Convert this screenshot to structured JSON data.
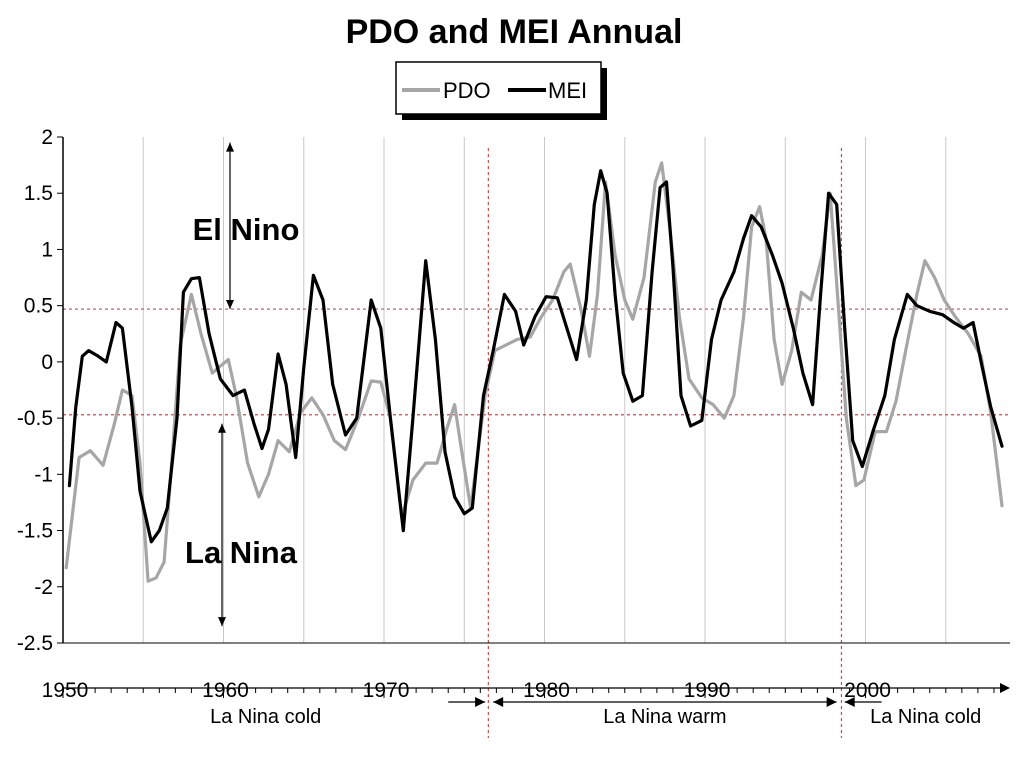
{
  "chart_data": {
    "type": "line",
    "title": "PDO and MEI Annual",
    "xlabel": "",
    "ylabel": "",
    "xlim": [
      1950,
      2009
    ],
    "ylim": [
      -2.5,
      2
    ],
    "x_ticks": [
      "1950",
      "1960",
      "1970",
      "1980",
      "1990",
      "2000"
    ],
    "y_ticks": [
      "2",
      "1.5",
      "1",
      "0.5",
      "0",
      "-0.5",
      "-1",
      "-1.5",
      "-2",
      "-2.5"
    ],
    "grid": "vertical",
    "legend_position": "top-center",
    "thresholds": [
      0.47,
      -0.47
    ],
    "regime_breaks": [
      1976.5,
      1998.5
    ],
    "regions": [
      {
        "label": "La Nina cold",
        "from": 1950,
        "to": 1976.5
      },
      {
        "label": "La Nina warm",
        "from": 1976.5,
        "to": 1998.5
      },
      {
        "label": "La Nina cold",
        "from": 1998.5,
        "to": 2009
      }
    ],
    "annotations": [
      {
        "label": "El Nino",
        "y_from": 0.47,
        "y_to": 1.95
      },
      {
        "label": "La Nina",
        "y_from": -0.55,
        "y_to": -2.35
      }
    ],
    "series": [
      {
        "name": "PDO",
        "color": "#a6a6a6",
        "points": [
          [
            1950.2,
            -1.83
          ],
          [
            1951,
            -0.85
          ],
          [
            1951.7,
            -0.79
          ],
          [
            1952.5,
            -0.92
          ],
          [
            1953.2,
            -0.55
          ],
          [
            1953.7,
            -0.25
          ],
          [
            1954.3,
            -0.3
          ],
          [
            1954.8,
            -0.9
          ],
          [
            1955.3,
            -1.95
          ],
          [
            1955.8,
            -1.92
          ],
          [
            1956.3,
            -1.78
          ],
          [
            1956.8,
            -0.85
          ],
          [
            1957.3,
            0.15
          ],
          [
            1958,
            0.6
          ],
          [
            1958.6,
            0.25
          ],
          [
            1959.3,
            -0.1
          ],
          [
            1959.7,
            -0.05
          ],
          [
            1960.3,
            0.02
          ],
          [
            1960.8,
            -0.3
          ],
          [
            1961.5,
            -0.9
          ],
          [
            1962.2,
            -1.2
          ],
          [
            1962.8,
            -1.0
          ],
          [
            1963.4,
            -0.7
          ],
          [
            1964.1,
            -0.8
          ],
          [
            1964.8,
            -0.45
          ],
          [
            1965.5,
            -0.32
          ],
          [
            1966.2,
            -0.47
          ],
          [
            1966.9,
            -0.7
          ],
          [
            1967.6,
            -0.78
          ],
          [
            1968.4,
            -0.5
          ],
          [
            1969.2,
            -0.17
          ],
          [
            1969.8,
            -0.18
          ],
          [
            1970.4,
            -0.5
          ],
          [
            1971.1,
            -1.38
          ],
          [
            1971.8,
            -1.05
          ],
          [
            1972.6,
            -0.9
          ],
          [
            1973.3,
            -0.9
          ],
          [
            1973.9,
            -0.6
          ],
          [
            1974.4,
            -0.38
          ],
          [
            1974.9,
            -0.85
          ],
          [
            1975.4,
            -1.3
          ],
          [
            1976.3,
            -0.3
          ],
          [
            1976.9,
            0.1
          ],
          [
            1977.6,
            0.15
          ],
          [
            1978.3,
            0.2
          ],
          [
            1979.1,
            0.22
          ],
          [
            1979.8,
            0.4
          ],
          [
            1980.5,
            0.55
          ],
          [
            1981.2,
            0.8
          ],
          [
            1981.6,
            0.87
          ],
          [
            1982.3,
            0.45
          ],
          [
            1982.8,
            0.05
          ],
          [
            1983.3,
            0.6
          ],
          [
            1983.8,
            1.6
          ],
          [
            1984.4,
            0.95
          ],
          [
            1985,
            0.55
          ],
          [
            1985.5,
            0.38
          ],
          [
            1986.2,
            0.75
          ],
          [
            1986.9,
            1.6
          ],
          [
            1987.3,
            1.77
          ],
          [
            1987.8,
            1.2
          ],
          [
            1988.4,
            0.4
          ],
          [
            1989,
            -0.15
          ],
          [
            1989.8,
            -0.32
          ],
          [
            1990.5,
            -0.38
          ],
          [
            1991.2,
            -0.5
          ],
          [
            1991.8,
            -0.3
          ],
          [
            1992.4,
            0.4
          ],
          [
            1992.9,
            1.2
          ],
          [
            1993.4,
            1.38
          ],
          [
            1993.8,
            1.1
          ],
          [
            1994.3,
            0.2
          ],
          [
            1994.8,
            -0.2
          ],
          [
            1995.4,
            0.1
          ],
          [
            1996,
            0.62
          ],
          [
            1996.6,
            0.55
          ],
          [
            1997.3,
            0.95
          ],
          [
            1997.8,
            1.5
          ],
          [
            1998.3,
            0.5
          ],
          [
            1998.8,
            -0.5
          ],
          [
            1999.4,
            -1.1
          ],
          [
            1999.9,
            -1.05
          ],
          [
            2000.6,
            -0.62
          ],
          [
            2001.3,
            -0.62
          ],
          [
            2001.9,
            -0.35
          ],
          [
            2002.5,
            0.1
          ],
          [
            2003.2,
            0.6
          ],
          [
            2003.7,
            0.9
          ],
          [
            2004.3,
            0.75
          ],
          [
            2004.9,
            0.55
          ],
          [
            2005.6,
            0.4
          ],
          [
            2006.4,
            0.25
          ],
          [
            2007.2,
            0.05
          ],
          [
            2007.8,
            -0.45
          ],
          [
            2008.5,
            -1.28
          ]
        ]
      },
      {
        "name": "MEI",
        "color": "#000000",
        "points": [
          [
            1950.4,
            -1.1
          ],
          [
            1950.8,
            -0.4
          ],
          [
            1951.2,
            0.05
          ],
          [
            1951.6,
            0.1
          ],
          [
            1952.2,
            0.05
          ],
          [
            1952.7,
            0.0
          ],
          [
            1953.3,
            0.35
          ],
          [
            1953.7,
            0.3
          ],
          [
            1954.3,
            -0.4
          ],
          [
            1954.8,
            -1.15
          ],
          [
            1955.5,
            -1.6
          ],
          [
            1956,
            -1.5
          ],
          [
            1956.5,
            -1.3
          ],
          [
            1957.1,
            -0.5
          ],
          [
            1957.5,
            0.62
          ],
          [
            1958,
            0.74
          ],
          [
            1958.5,
            0.75
          ],
          [
            1959.1,
            0.25
          ],
          [
            1959.8,
            -0.15
          ],
          [
            1960.6,
            -0.3
          ],
          [
            1961.3,
            -0.25
          ],
          [
            1961.9,
            -0.55
          ],
          [
            1962.4,
            -0.77
          ],
          [
            1962.8,
            -0.6
          ],
          [
            1963.4,
            0.07
          ],
          [
            1963.9,
            -0.2
          ],
          [
            1964.5,
            -0.85
          ],
          [
            1965,
            -0.05
          ],
          [
            1965.6,
            0.77
          ],
          [
            1966.2,
            0.55
          ],
          [
            1966.8,
            -0.2
          ],
          [
            1967.6,
            -0.65
          ],
          [
            1968.3,
            -0.5
          ],
          [
            1969.2,
            0.55
          ],
          [
            1969.8,
            0.3
          ],
          [
            1970.4,
            -0.5
          ],
          [
            1971.2,
            -1.5
          ],
          [
            1971.8,
            -0.5
          ],
          [
            1972.6,
            0.9
          ],
          [
            1973.2,
            0.2
          ],
          [
            1973.8,
            -0.8
          ],
          [
            1974.4,
            -1.2
          ],
          [
            1975,
            -1.35
          ],
          [
            1975.5,
            -1.3
          ],
          [
            1976.2,
            -0.3
          ],
          [
            1976.8,
            0.1
          ],
          [
            1977.5,
            0.6
          ],
          [
            1978.2,
            0.45
          ],
          [
            1978.7,
            0.15
          ],
          [
            1979.4,
            0.4
          ],
          [
            1980.1,
            0.58
          ],
          [
            1980.8,
            0.57
          ],
          [
            1981.5,
            0.25
          ],
          [
            1982,
            0.02
          ],
          [
            1982.6,
            0.55
          ],
          [
            1983.1,
            1.4
          ],
          [
            1983.5,
            1.7
          ],
          [
            1983.9,
            1.5
          ],
          [
            1984.4,
            0.6
          ],
          [
            1984.9,
            -0.1
          ],
          [
            1985.5,
            -0.35
          ],
          [
            1986.1,
            -0.3
          ],
          [
            1986.7,
            0.8
          ],
          [
            1987.2,
            1.55
          ],
          [
            1987.6,
            1.6
          ],
          [
            1988,
            0.85
          ],
          [
            1988.5,
            -0.3
          ],
          [
            1989.1,
            -0.57
          ],
          [
            1989.8,
            -0.52
          ],
          [
            1990.4,
            0.2
          ],
          [
            1991,
            0.55
          ],
          [
            1991.8,
            0.8
          ],
          [
            1992.4,
            1.1
          ],
          [
            1992.9,
            1.3
          ],
          [
            1993.5,
            1.2
          ],
          [
            1994.2,
            0.95
          ],
          [
            1994.8,
            0.7
          ],
          [
            1995.5,
            0.3
          ],
          [
            1996.1,
            -0.1
          ],
          [
            1996.7,
            -0.38
          ],
          [
            1997.2,
            0.6
          ],
          [
            1997.7,
            1.5
          ],
          [
            1998.2,
            1.4
          ],
          [
            1998.7,
            0.3
          ],
          [
            1999.2,
            -0.7
          ],
          [
            1999.8,
            -0.93
          ],
          [
            2000.5,
            -0.6
          ],
          [
            2001.2,
            -0.3
          ],
          [
            2001.8,
            0.2
          ],
          [
            2002.6,
            0.6
          ],
          [
            2003.2,
            0.5
          ],
          [
            2004,
            0.45
          ],
          [
            2004.8,
            0.42
          ],
          [
            2005.5,
            0.35
          ],
          [
            2006.1,
            0.3
          ],
          [
            2006.7,
            0.35
          ],
          [
            2007.2,
            0.0
          ],
          [
            2007.8,
            -0.4
          ],
          [
            2008.5,
            -0.75
          ]
        ]
      }
    ]
  }
}
